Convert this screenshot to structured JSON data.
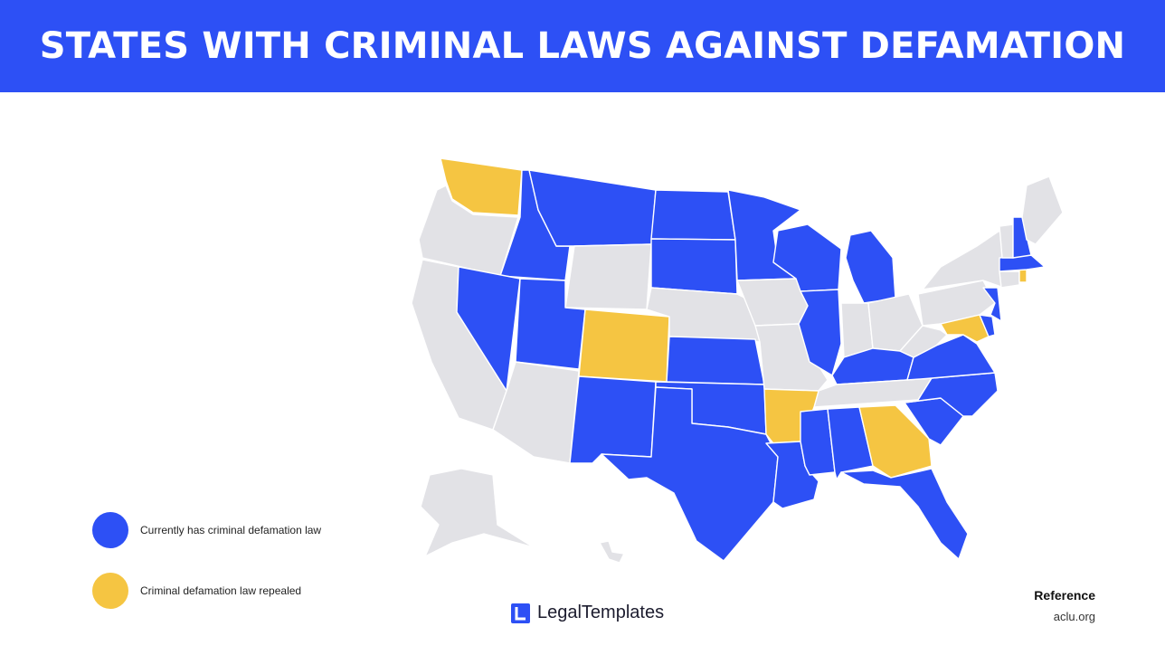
{
  "header": {
    "title": "STATES WITH CRIMINAL LAWS AGAINST DEFAMATION"
  },
  "colors": {
    "banner": "#2d50f5",
    "has_law": "#2d50f5",
    "repealed": "#f5c542",
    "none": "#e2e2e6"
  },
  "legend": {
    "items": [
      {
        "label": "Currently has criminal defamation law",
        "color": "#2d50f5"
      },
      {
        "label": "Criminal defamation law repealed",
        "color": "#f5c542"
      }
    ]
  },
  "map": {
    "states_with_law": [
      "Idaho",
      "Montana",
      "North Dakota",
      "South Dakota",
      "Minnesota",
      "Wisconsin",
      "Michigan",
      "Nevada",
      "Utah",
      "Kansas",
      "Oklahoma",
      "New Mexico",
      "Texas",
      "Louisiana",
      "Mississippi",
      "Alabama",
      "Florida",
      "South Carolina",
      "North Carolina",
      "Virginia",
      "Kentucky",
      "Illinois",
      "New Jersey",
      "Delaware",
      "Massachusetts",
      "New Hampshire"
    ],
    "states_repealed": [
      "Washington",
      "Colorado",
      "Arkansas",
      "Georgia",
      "Maryland",
      "Rhode Island"
    ],
    "states_none": [
      "Oregon",
      "California",
      "Arizona",
      "Wyoming",
      "Nebraska",
      "Iowa",
      "Missouri",
      "Tennessee",
      "Indiana",
      "Ohio",
      "West Virginia",
      "Pennsylvania",
      "New York",
      "Vermont",
      "Maine",
      "Connecticut",
      "Alaska",
      "Hawaii"
    ]
  },
  "brand": {
    "name": "LegalTemplates"
  },
  "reference": {
    "title": "Reference",
    "source": "aclu.org"
  }
}
